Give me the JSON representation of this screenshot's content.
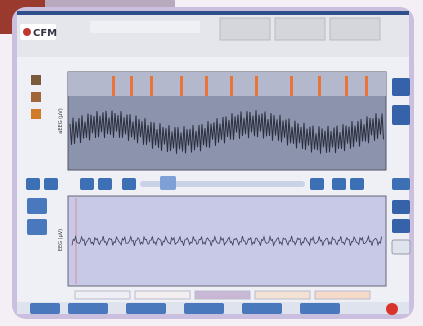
{
  "header": {
    "logo": "CFM"
  },
  "panels": {
    "aeeg_axis_label": "aEEG (µV)",
    "eeg_axis_label": "EEG (µV)"
  }
}
